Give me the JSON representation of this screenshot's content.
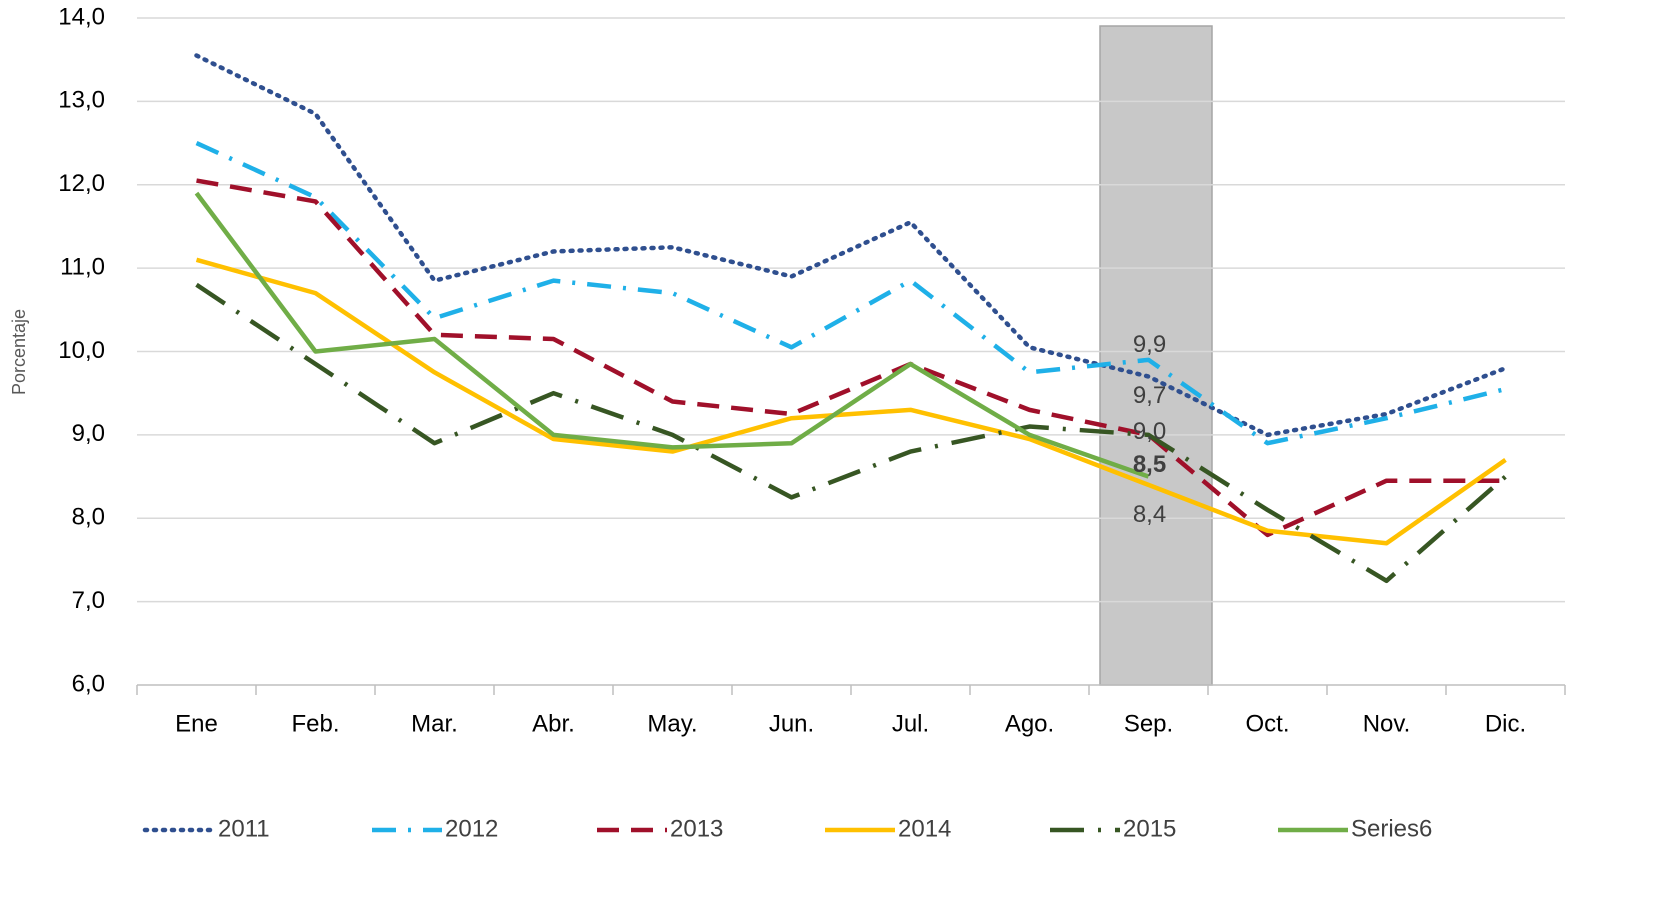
{
  "chart_data": {
    "type": "line",
    "y_label": "Porcentaje",
    "categories": [
      "Ene",
      "Feb.",
      "Mar.",
      "Abr.",
      "May.",
      "Jun.",
      "Jul.",
      "Ago.",
      "Sep.",
      "Oct.",
      "Nov.",
      "Dic."
    ],
    "ylim": [
      6,
      14
    ],
    "yticks": [
      {
        "value": 6,
        "label": "6,0"
      },
      {
        "value": 7,
        "label": "7,0"
      },
      {
        "value": 8,
        "label": "8,0"
      },
      {
        "value": 9,
        "label": "9,0"
      },
      {
        "value": 10,
        "label": "10,0"
      },
      {
        "value": 11,
        "label": "11,0"
      },
      {
        "value": 12,
        "label": "12,0"
      },
      {
        "value": 13,
        "label": "13,0"
      },
      {
        "value": 14,
        "label": "14,0"
      }
    ],
    "grid": true,
    "legend": "bottom",
    "series": [
      {
        "name": "2011",
        "color": "#2f4f8f",
        "dash": "dotted",
        "values": [
          13.55,
          12.85,
          10.85,
          11.2,
          11.25,
          10.9,
          11.55,
          10.05,
          9.7,
          9.0,
          9.25,
          9.8
        ],
        "value_labels": [
          null,
          null,
          null,
          null,
          null,
          null,
          null,
          null,
          "9,7",
          null,
          null,
          null
        ]
      },
      {
        "name": "2012",
        "color": "#1fb0e8",
        "dash": "dashdot",
        "values": [
          12.5,
          11.85,
          10.4,
          10.85,
          10.7,
          10.05,
          10.85,
          9.75,
          9.9,
          8.9,
          9.2,
          9.55
        ],
        "value_labels": [
          null,
          null,
          null,
          null,
          null,
          null,
          null,
          null,
          "9,9",
          null,
          null,
          null
        ]
      },
      {
        "name": "2013",
        "color": "#a0102a",
        "dash": "dashed",
        "values": [
          12.05,
          11.8,
          10.2,
          10.15,
          9.4,
          9.25,
          9.85,
          9.3,
          9.0,
          7.8,
          8.45,
          8.45
        ],
        "value_labels": [
          null,
          null,
          null,
          null,
          null,
          null,
          null,
          null,
          "9,0",
          null,
          null,
          null
        ]
      },
      {
        "name": "2014",
        "color": "#ffc000",
        "dash": "solid",
        "values": [
          11.1,
          10.7,
          9.75,
          8.95,
          8.8,
          9.2,
          9.3,
          8.95,
          8.4,
          7.85,
          7.7,
          8.7
        ],
        "value_labels": [
          null,
          null,
          null,
          null,
          null,
          null,
          null,
          null,
          "8,4",
          null,
          null,
          null
        ]
      },
      {
        "name": "2015",
        "color": "#375623",
        "dash": "longdashdot",
        "values": [
          10.8,
          9.85,
          8.9,
          9.5,
          9.0,
          8.25,
          8.8,
          9.1,
          9.0,
          8.1,
          7.25,
          8.5
        ]
      },
      {
        "name": "Series6",
        "color": "#70ad47",
        "dash": "solid",
        "values": [
          11.9,
          10.0,
          10.15,
          9.0,
          8.85,
          8.9,
          9.85,
          9.0,
          8.5,
          null,
          null,
          null
        ],
        "value_labels": [
          null,
          null,
          null,
          null,
          null,
          null,
          null,
          null,
          "8,5",
          null,
          null,
          null
        ]
      }
    ]
  }
}
